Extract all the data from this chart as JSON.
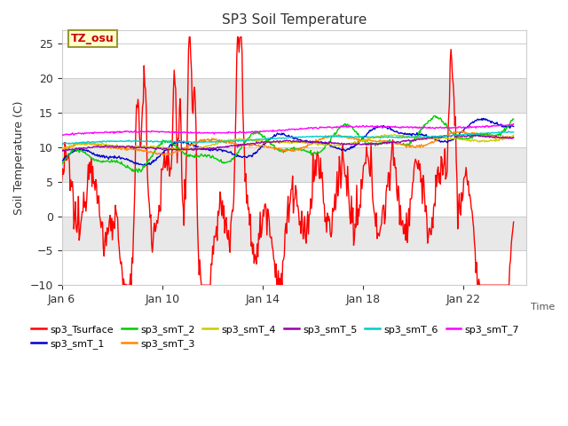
{
  "title": "SP3 Soil Temperature",
  "xlabel": "Time",
  "ylabel": "Soil Temperature (C)",
  "ylim": [
    -10,
    27
  ],
  "yticks": [
    -10,
    -5,
    0,
    5,
    10,
    15,
    20,
    25
  ],
  "xtick_labels": [
    "Jan 6",
    "Jan 10",
    "Jan 14",
    "Jan 18",
    "Jan 22"
  ],
  "xtick_pos": [
    0,
    4,
    8,
    12,
    16
  ],
  "xlim": [
    0,
    18.5
  ],
  "annotation_text": "TZ_osu",
  "annotation_color": "#cc0000",
  "annotation_bg": "#ffffcc",
  "annotation_border": "#999933",
  "fig_bg": "#ffffff",
  "plot_bg": "#ffffff",
  "band_color_light": "#f0f0f0",
  "band_color_white": "#ffffff",
  "grid_color": "#d0d0d0",
  "series": [
    {
      "name": "sp3_Tsurface",
      "color": "#ff0000"
    },
    {
      "name": "sp3_smT_1",
      "color": "#0000cc"
    },
    {
      "name": "sp3_smT_2",
      "color": "#00cc00"
    },
    {
      "name": "sp3_smT_3",
      "color": "#ff8800"
    },
    {
      "name": "sp3_smT_4",
      "color": "#cccc00"
    },
    {
      "name": "sp3_smT_5",
      "color": "#9900aa"
    },
    {
      "name": "sp3_smT_6",
      "color": "#00cccc"
    },
    {
      "name": "sp3_smT_7",
      "color": "#ff00ff"
    }
  ]
}
